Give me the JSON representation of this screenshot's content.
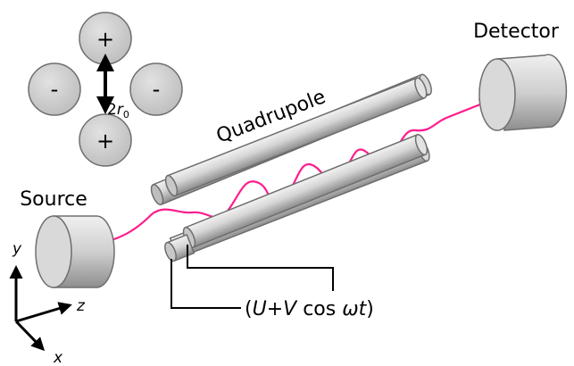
{
  "labels": {
    "detector": "Detector",
    "source": "Source",
    "quadrupole": "Quadrupole",
    "voltage_open": "(",
    "voltage_U": "U",
    "voltage_plus": "+",
    "voltage_V": "V",
    "voltage_cos": " cos ",
    "voltage_omega_t": "ωt",
    "voltage_close": ")",
    "r0_prefix": "2",
    "r0_r": "r",
    "r0_sub": "0"
  },
  "rod_charges": {
    "top": "+",
    "bottom": "+",
    "left": "-",
    "right": "-"
  },
  "axes": {
    "y": "y",
    "z": "z",
    "x": "x"
  },
  "colors": {
    "ion_path": "#ff1c8c",
    "rod_fill": "#d2d2d2",
    "rod_stroke": "#6e6e6e",
    "text": "#000000"
  }
}
